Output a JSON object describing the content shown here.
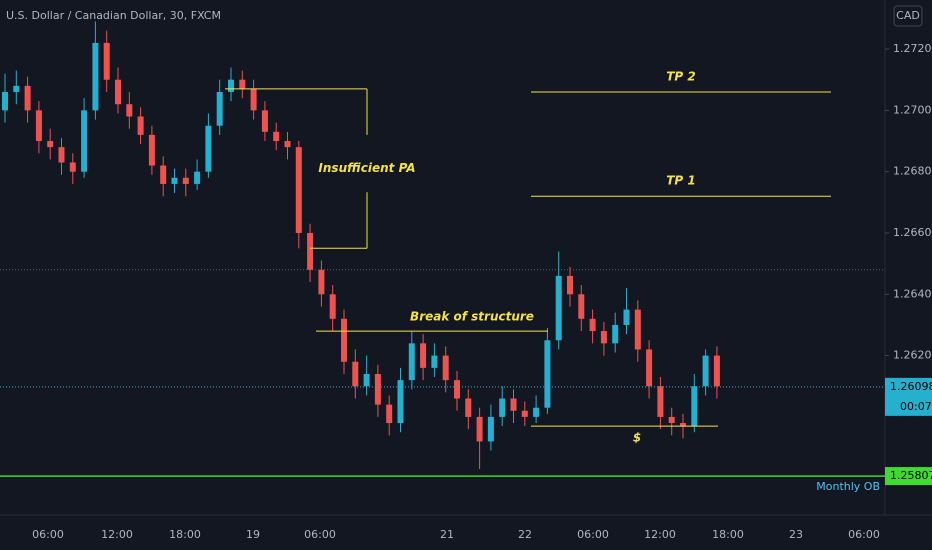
{
  "header": {
    "symbol": "U.S. Dollar / Canadian Dollar, 30, FXCM",
    "currency": "CAD"
  },
  "chart_data": {
    "type": "candlestick",
    "up_color": "#26b0cf",
    "down_color": "#ef5350",
    "ylim": [
      1.2568,
      1.2736
    ],
    "yticks": [
      {
        "value": 1.262,
        "label": "1.26200"
      },
      {
        "value": 1.264,
        "label": "1.26400"
      },
      {
        "value": 1.266,
        "label": "1.26600"
      },
      {
        "value": 1.268,
        "label": "1.26800"
      },
      {
        "value": 1.27,
        "label": "1.27000"
      },
      {
        "value": 1.272,
        "label": "1.27200"
      }
    ],
    "xtick_labels": [
      "06:00",
      "12:00",
      "18:00",
      "19",
      "06:00",
      "21",
      "22",
      "06:00",
      "12:00",
      "18:00",
      "23",
      "06:00"
    ],
    "ohlc": [
      [
        1.27,
        1.2712,
        1.2696,
        1.2706
      ],
      [
        1.2706,
        1.2713,
        1.2702,
        1.2708
      ],
      [
        1.2708,
        1.2711,
        1.2696,
        1.27
      ],
      [
        1.27,
        1.2703,
        1.2686,
        1.269
      ],
      [
        1.269,
        1.2694,
        1.2684,
        1.2688
      ],
      [
        1.2688,
        1.2691,
        1.2679,
        1.2683
      ],
      [
        1.2683,
        1.2686,
        1.2676,
        1.268
      ],
      [
        1.268,
        1.2704,
        1.2678,
        1.27
      ],
      [
        1.27,
        1.2729,
        1.2697,
        1.2722
      ],
      [
        1.2722,
        1.2726,
        1.2706,
        1.271
      ],
      [
        1.271,
        1.2714,
        1.2699,
        1.2702
      ],
      [
        1.2702,
        1.2706,
        1.2694,
        1.2698
      ],
      [
        1.2698,
        1.2701,
        1.2689,
        1.2692
      ],
      [
        1.2692,
        1.2695,
        1.2679,
        1.2682
      ],
      [
        1.2682,
        1.2685,
        1.2672,
        1.2676
      ],
      [
        1.2676,
        1.2681,
        1.2673,
        1.2678
      ],
      [
        1.2678,
        1.2681,
        1.2672,
        1.2676
      ],
      [
        1.2676,
        1.2684,
        1.2674,
        1.268
      ],
      [
        1.268,
        1.2699,
        1.2678,
        1.2695
      ],
      [
        1.2695,
        1.271,
        1.2692,
        1.2706
      ],
      [
        1.2706,
        1.2714,
        1.2703,
        1.271
      ],
      [
        1.271,
        1.2713,
        1.2704,
        1.2707
      ],
      [
        1.2707,
        1.271,
        1.2697,
        1.27
      ],
      [
        1.27,
        1.2703,
        1.269,
        1.2693
      ],
      [
        1.2693,
        1.2696,
        1.2687,
        1.269
      ],
      [
        1.269,
        1.2693,
        1.2684,
        1.2688
      ],
      [
        1.2688,
        1.269,
        1.2655,
        1.266
      ],
      [
        1.266,
        1.2663,
        1.2644,
        1.2648
      ],
      [
        1.2648,
        1.2651,
        1.2636,
        1.264
      ],
      [
        1.264,
        1.2643,
        1.2628,
        1.2632
      ],
      [
        1.2632,
        1.2635,
        1.2614,
        1.2618
      ],
      [
        1.2618,
        1.2622,
        1.2606,
        1.261
      ],
      [
        1.261,
        1.262,
        1.2607,
        1.2614
      ],
      [
        1.2614,
        1.2617,
        1.26,
        1.2604
      ],
      [
        1.2604,
        1.2607,
        1.2594,
        1.2598
      ],
      [
        1.2598,
        1.2616,
        1.2595,
        1.2612
      ],
      [
        1.2612,
        1.2628,
        1.2609,
        1.2624
      ],
      [
        1.2624,
        1.2627,
        1.2612,
        1.2616
      ],
      [
        1.2616,
        1.2624,
        1.2613,
        1.262
      ],
      [
        1.262,
        1.2623,
        1.2608,
        1.2612
      ],
      [
        1.2612,
        1.2615,
        1.2602,
        1.2606
      ],
      [
        1.2606,
        1.2609,
        1.2596,
        1.26
      ],
      [
        1.26,
        1.2603,
        1.2583,
        1.2592
      ],
      [
        1.2592,
        1.2604,
        1.2589,
        1.26
      ],
      [
        1.26,
        1.261,
        1.2597,
        1.2606
      ],
      [
        1.2606,
        1.2609,
        1.2598,
        1.2602
      ],
      [
        1.2602,
        1.2605,
        1.2597,
        1.26
      ],
      [
        1.26,
        1.2607,
        1.2598,
        1.2603
      ],
      [
        1.2603,
        1.2629,
        1.2601,
        1.2625
      ],
      [
        1.2625,
        1.2654,
        1.2622,
        1.2646
      ],
      [
        1.2646,
        1.2649,
        1.2636,
        1.264
      ],
      [
        1.264,
        1.2643,
        1.2628,
        1.2632
      ],
      [
        1.2632,
        1.2635,
        1.2624,
        1.2628
      ],
      [
        1.2628,
        1.2631,
        1.262,
        1.2624
      ],
      [
        1.2624,
        1.2634,
        1.2621,
        1.263
      ],
      [
        1.263,
        1.2642,
        1.2627,
        1.2635
      ],
      [
        1.2635,
        1.2638,
        1.2618,
        1.2622
      ],
      [
        1.2622,
        1.2625,
        1.2606,
        1.261
      ],
      [
        1.261,
        1.2613,
        1.2596,
        1.26
      ],
      [
        1.26,
        1.2603,
        1.2594,
        1.2598
      ],
      [
        1.2598,
        1.2601,
        1.2593,
        1.2597
      ],
      [
        1.2597,
        1.2614,
        1.2595,
        1.261
      ],
      [
        1.261,
        1.2622,
        1.2607,
        1.262
      ],
      [
        1.262,
        1.2623,
        1.2606,
        1.261
      ]
    ],
    "reference_line": 1.2648,
    "last_price": {
      "value": 1.26098,
      "label": "1.26098"
    },
    "countdown": "00:07",
    "monthly_ob": {
      "text": "Monthly OB",
      "price": {
        "value": 1.25807,
        "label": "1.25807"
      }
    },
    "drawings": [
      {
        "text": "Insufficient PA",
        "top": 1.2707,
        "bottom": 1.2655
      },
      {
        "text": "TP 2",
        "level": 1.2706
      },
      {
        "text": "TP 1",
        "level": 1.2672
      },
      {
        "text": "Break of structure",
        "level": 1.2628
      },
      {
        "text": "$",
        "level": 1.2597
      }
    ]
  }
}
